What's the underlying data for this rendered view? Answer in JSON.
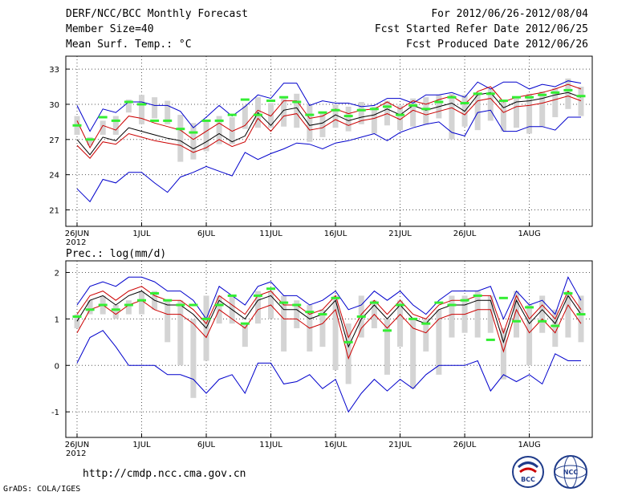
{
  "header": {
    "title": "DERF/NCC/BCC Monthly Forecast",
    "member_size": "Member Size=40",
    "variable_top": "Mean Surf. Temp.: °C",
    "period": "For 2012/06/26-2012/08/04",
    "started": "Fcst Started Refer Date 2012/06/25",
    "produced": "Fcst Produced Date 2012/06/26"
  },
  "footer": {
    "url": "http://cmdp.ncc.cma.gov.cn",
    "credit": "GrADS: COLA/IGES",
    "logo_bcc": "BCC",
    "logo_ncc": "NCC"
  },
  "colors": {
    "envelope": "#0000cc",
    "spread": "#cc0000",
    "mean": "#000000",
    "box": "#d4d4d4",
    "marker": "#33ee33",
    "grid": "#555555"
  },
  "chart_data": [
    {
      "type": "line",
      "title": "Mean Surf. Temp.: °C",
      "date_ticks": [
        "26JUN",
        "1JUL",
        "6JUL",
        "11JUL",
        "16JUL",
        "21JUL",
        "26JUL",
        "1AUG"
      ],
      "year_label": "2012",
      "ylim": [
        19.6,
        34.1
      ],
      "yticks": [
        21,
        24,
        27,
        30,
        33
      ],
      "x": [
        0,
        1,
        2,
        3,
        4,
        5,
        6,
        7,
        8,
        9,
        10,
        11,
        12,
        13,
        14,
        15,
        16,
        17,
        18,
        19,
        20,
        21,
        22,
        23,
        24,
        25,
        26,
        27,
        28,
        29,
        30,
        31,
        32,
        33,
        34,
        35,
        36,
        37,
        38,
        39
      ],
      "series": [
        {
          "name": "max",
          "role": "envelope",
          "values": [
            29.9,
            27.7,
            29.6,
            29.3,
            30.2,
            30.2,
            29.9,
            29.9,
            29.4,
            28.0,
            28.9,
            29.9,
            29.0,
            29.8,
            30.8,
            30.5,
            31.8,
            31.8,
            29.9,
            30.3,
            30.1,
            30.1,
            29.8,
            29.9,
            30.5,
            30.5,
            30.1,
            30.8,
            30.8,
            31.0,
            30.6,
            31.9,
            31.3,
            31.9,
            31.9,
            31.3,
            31.7,
            31.5,
            32.0,
            31.8
          ]
        },
        {
          "name": "upper",
          "role": "spread",
          "values": [
            28.6,
            26.3,
            28.2,
            27.8,
            29.0,
            28.8,
            28.4,
            28.1,
            27.8,
            27.0,
            27.7,
            28.4,
            27.7,
            28.2,
            29.5,
            29.0,
            30.3,
            30.3,
            28.8,
            29.0,
            29.6,
            29.2,
            29.5,
            29.6,
            30.2,
            29.6,
            30.3,
            30.0,
            30.4,
            30.7,
            30.0,
            31.1,
            31.5,
            30.2,
            30.6,
            30.8,
            31.0,
            31.3,
            31.7,
            31.3
          ]
        },
        {
          "name": "mean",
          "role": "mean",
          "values": [
            27.0,
            25.7,
            27.2,
            26.9,
            28.0,
            27.7,
            27.4,
            27.1,
            26.9,
            26.2,
            26.8,
            27.5,
            26.8,
            27.3,
            29.3,
            28.2,
            29.5,
            29.7,
            28.2,
            28.4,
            29.1,
            28.6,
            28.9,
            29.1,
            29.6,
            29.1,
            29.9,
            29.5,
            29.8,
            30.1,
            29.4,
            30.8,
            31.0,
            29.7,
            30.2,
            30.3,
            30.5,
            30.8,
            31.0,
            30.6
          ]
        },
        {
          "name": "lower",
          "role": "spread",
          "values": [
            26.5,
            25.4,
            26.8,
            26.6,
            27.5,
            27.2,
            26.9,
            26.7,
            26.5,
            25.9,
            26.3,
            27.0,
            26.4,
            26.8,
            28.8,
            27.7,
            29.0,
            29.2,
            27.8,
            28.0,
            28.7,
            28.2,
            28.6,
            28.8,
            29.2,
            28.7,
            29.5,
            29.1,
            29.4,
            29.7,
            29.1,
            30.3,
            30.5,
            29.3,
            29.8,
            29.9,
            30.1,
            30.4,
            30.7,
            30.3
          ]
        },
        {
          "name": "min",
          "role": "envelope",
          "values": [
            22.8,
            21.7,
            23.6,
            23.3,
            24.2,
            24.2,
            23.3,
            22.5,
            23.8,
            24.2,
            24.7,
            24.3,
            23.9,
            25.9,
            25.3,
            25.8,
            26.2,
            26.7,
            26.6,
            26.2,
            26.7,
            26.9,
            27.2,
            27.5,
            26.9,
            27.6,
            28.0,
            28.3,
            28.5,
            27.6,
            27.3,
            29.3,
            29.5,
            27.7,
            27.7,
            28.1,
            28.1,
            27.8,
            28.9,
            28.9
          ]
        }
      ],
      "boxes": [
        [
          27.4,
          29.0
        ],
        [
          26.5,
          27.2
        ],
        [
          27.4,
          28.6
        ],
        [
          27.4,
          29.0
        ],
        [
          29.3,
          30.4
        ],
        [
          28.3,
          30.8
        ],
        [
          28.8,
          30.6
        ],
        [
          28.3,
          30.3
        ],
        [
          25.1,
          29.1
        ],
        [
          25.3,
          28.4
        ],
        [
          26.0,
          28.6
        ],
        [
          26.6,
          29.0
        ],
        [
          26.6,
          28.9
        ],
        [
          27.9,
          29.9
        ],
        [
          28.0,
          30.6
        ],
        [
          28.0,
          30.1
        ],
        [
          28.1,
          30.5
        ],
        [
          28.0,
          30.9
        ],
        [
          26.8,
          30.0
        ],
        [
          27.2,
          29.3
        ],
        [
          28.0,
          30.0
        ],
        [
          27.7,
          29.8
        ],
        [
          28.3,
          30.2
        ],
        [
          27.5,
          29.8
        ],
        [
          28.2,
          30.3
        ],
        [
          27.8,
          29.9
        ],
        [
          28.1,
          30.5
        ],
        [
          28.3,
          30.6
        ],
        [
          28.8,
          30.8
        ],
        [
          27.0,
          30.9
        ],
        [
          28.1,
          30.8
        ],
        [
          27.8,
          31.0
        ],
        [
          28.6,
          31.3
        ],
        [
          27.7,
          30.3
        ],
        [
          28.0,
          30.5
        ],
        [
          27.5,
          30.9
        ],
        [
          28.1,
          31.1
        ],
        [
          28.9,
          31.4
        ],
        [
          29.6,
          32.2
        ],
        [
          29.0,
          31.5
        ]
      ],
      "markers": [
        28.2,
        27.0,
        28.9,
        28.6,
        30.2,
        30.0,
        28.6,
        28.6,
        27.9,
        27.6,
        28.6,
        28.6,
        29.1,
        30.4,
        29.1,
        30.3,
        30.6,
        30.2,
        29.1,
        29.3,
        29.5,
        29.0,
        29.5,
        29.6,
        29.8,
        29.1,
        29.9,
        29.6,
        30.2,
        30.6,
        30.1,
        30.9,
        30.9,
        30.3,
        30.6,
        30.6,
        30.8,
        31.0,
        31.2,
        30.7
      ]
    },
    {
      "type": "line",
      "title": "Prec.: log(mm/d)",
      "date_ticks": [
        "26JUN",
        "1JUL",
        "6JUL",
        "11JUL",
        "16JUL",
        "21JUL",
        "26JUL",
        "1AUG"
      ],
      "year_label": "2012",
      "ylim": [
        -1.55,
        2.25
      ],
      "yticks": [
        -1,
        0,
        1,
        2
      ],
      "x": [
        0,
        1,
        2,
        3,
        4,
        5,
        6,
        7,
        8,
        9,
        10,
        11,
        12,
        13,
        14,
        15,
        16,
        17,
        18,
        19,
        20,
        21,
        22,
        23,
        24,
        25,
        26,
        27,
        28,
        29,
        30,
        31,
        32,
        33,
        34,
        35,
        36,
        37,
        38,
        39
      ],
      "series": [
        {
          "name": "max",
          "role": "envelope",
          "values": [
            1.3,
            1.7,
            1.8,
            1.7,
            1.9,
            1.9,
            1.8,
            1.6,
            1.6,
            1.4,
            1.0,
            1.7,
            1.5,
            1.3,
            1.7,
            1.8,
            1.5,
            1.5,
            1.3,
            1.4,
            1.6,
            1.2,
            1.3,
            1.6,
            1.4,
            1.6,
            1.3,
            1.1,
            1.4,
            1.6,
            1.6,
            1.6,
            1.7,
            1.0,
            1.6,
            1.3,
            1.4,
            1.1,
            1.9,
            1.4
          ]
        },
        {
          "name": "upper",
          "role": "spread",
          "values": [
            1.1,
            1.5,
            1.6,
            1.4,
            1.6,
            1.7,
            1.5,
            1.4,
            1.4,
            1.2,
            0.9,
            1.5,
            1.3,
            1.1,
            1.5,
            1.6,
            1.3,
            1.3,
            1.1,
            1.2,
            1.5,
            0.6,
            1.1,
            1.4,
            1.1,
            1.4,
            1.1,
            1.0,
            1.3,
            1.4,
            1.4,
            1.5,
            1.5,
            0.7,
            1.5,
            1.0,
            1.3,
            1.0,
            1.6,
            1.2
          ]
        },
        {
          "name": "mean",
          "role": "mean",
          "values": [
            0.95,
            1.4,
            1.5,
            1.3,
            1.5,
            1.6,
            1.4,
            1.3,
            1.3,
            1.1,
            0.8,
            1.4,
            1.2,
            1.0,
            1.4,
            1.5,
            1.2,
            1.2,
            1.0,
            1.1,
            1.4,
            0.4,
            1.0,
            1.3,
            1.0,
            1.3,
            1.0,
            0.9,
            1.2,
            1.3,
            1.3,
            1.4,
            1.4,
            0.5,
            1.4,
            0.9,
            1.2,
            0.9,
            1.5,
            1.1
          ]
        },
        {
          "name": "lower",
          "role": "spread",
          "values": [
            0.7,
            1.2,
            1.3,
            1.1,
            1.3,
            1.4,
            1.2,
            1.1,
            1.1,
            0.9,
            0.6,
            1.2,
            1.0,
            0.8,
            1.2,
            1.3,
            1.0,
            1.0,
            0.8,
            0.9,
            1.2,
            0.15,
            0.8,
            1.1,
            0.8,
            1.1,
            0.8,
            0.7,
            1.0,
            1.1,
            1.1,
            1.2,
            1.2,
            0.3,
            1.2,
            0.7,
            1.0,
            0.7,
            1.3,
            0.9
          ]
        },
        {
          "name": "min",
          "role": "envelope",
          "values": [
            0.05,
            0.6,
            0.75,
            0.4,
            0.0,
            0.0,
            0.0,
            -0.2,
            -0.2,
            -0.3,
            -0.6,
            -0.3,
            -0.2,
            -0.6,
            0.05,
            0.05,
            -0.4,
            -0.35,
            -0.2,
            -0.5,
            -0.3,
            -1.0,
            -0.6,
            -0.3,
            -0.55,
            -0.3,
            -0.5,
            -0.2,
            0.0,
            0.0,
            0.0,
            0.1,
            -0.55,
            -0.2,
            -0.35,
            -0.2,
            -0.4,
            0.25,
            0.1,
            0.1
          ]
        }
      ],
      "boxes": [
        [
          0.8,
          1.1
        ],
        [
          1.1,
          1.4
        ],
        [
          1.1,
          1.5
        ],
        [
          1.0,
          1.3
        ],
        [
          1.1,
          1.4
        ],
        [
          1.1,
          1.6
        ],
        [
          1.2,
          1.6
        ],
        [
          0.5,
          1.4
        ],
        [
          0.0,
          1.4
        ],
        [
          -0.7,
          1.0
        ],
        [
          0.1,
          1.5
        ],
        [
          0.9,
          1.5
        ],
        [
          0.9,
          1.5
        ],
        [
          0.4,
          0.9
        ],
        [
          0.9,
          1.6
        ],
        [
          1.0,
          1.6
        ],
        [
          0.3,
          1.5
        ],
        [
          0.8,
          1.4
        ],
        [
          0.3,
          1.3
        ],
        [
          0.4,
          1.2
        ],
        [
          -0.1,
          1.5
        ],
        [
          -0.4,
          0.9
        ],
        [
          0.6,
          1.5
        ],
        [
          0.8,
          1.4
        ],
        [
          -0.2,
          1.0
        ],
        [
          0.4,
          1.4
        ],
        [
          -0.5,
          1.0
        ],
        [
          0.3,
          1.0
        ],
        [
          -0.2,
          1.2
        ],
        [
          0.6,
          1.5
        ],
        [
          0.7,
          1.5
        ],
        [
          0.6,
          1.6
        ],
        [
          0.7,
          1.5
        ],
        [
          -0.3,
          0.8
        ],
        [
          0.6,
          1.6
        ],
        [
          0.0,
          1.3
        ],
        [
          0.7,
          1.5
        ],
        [
          0.4,
          1.2
        ],
        [
          0.6,
          1.6
        ],
        [
          0.5,
          1.5
        ]
      ],
      "markers": [
        1.05,
        1.2,
        1.3,
        1.2,
        1.3,
        1.4,
        1.55,
        1.4,
        1.3,
        1.3,
        1.0,
        1.3,
        1.5,
        0.9,
        1.5,
        1.65,
        1.35,
        1.3,
        1.15,
        1.1,
        1.45,
        0.5,
        1.05,
        1.35,
        0.75,
        1.3,
        1.0,
        0.9,
        1.35,
        1.3,
        1.4,
        1.5,
        0.55,
        1.45,
        0.95,
        1.25,
        0.95,
        0.85,
        1.55,
        1.1
      ]
    }
  ]
}
